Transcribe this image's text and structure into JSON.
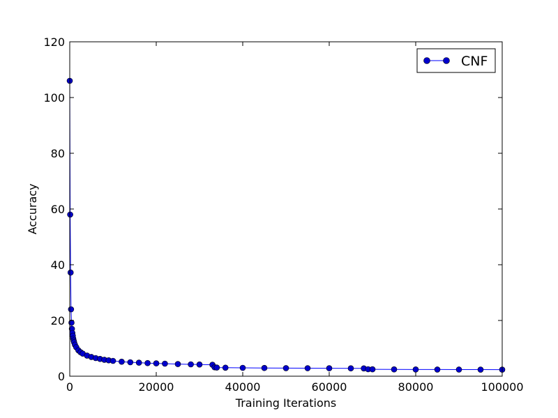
{
  "chart_data": {
    "type": "line",
    "title": "",
    "xlabel": "Training Iterations",
    "ylabel": "Accuracy",
    "xlim": [
      0,
      100000
    ],
    "ylim": [
      0,
      120
    ],
    "xticks": [
      0,
      20000,
      40000,
      60000,
      80000,
      100000
    ],
    "xtick_labels": [
      "0",
      "20000",
      "40000",
      "60000",
      "80000",
      "100000"
    ],
    "yticks": [
      0,
      20,
      40,
      60,
      80,
      100,
      120
    ],
    "ytick_labels": [
      "0",
      "20",
      "40",
      "60",
      "80",
      "100",
      "120"
    ],
    "grid": false,
    "legend": {
      "position": "top-right",
      "entries": [
        "CNF"
      ]
    },
    "series": [
      {
        "name": "CNF",
        "color": "#0000ff",
        "marker": "circle",
        "x": [
          0,
          100,
          200,
          300,
          400,
          500,
          600,
          700,
          800,
          900,
          1000,
          1200,
          1500,
          2000,
          2500,
          3000,
          4000,
          5000,
          6000,
          7000,
          8000,
          9000,
          10000,
          12000,
          14000,
          16000,
          18000,
          20000,
          22000,
          25000,
          28000,
          30000,
          33000,
          33500,
          34000,
          36000,
          40000,
          45000,
          50000,
          55000,
          60000,
          65000,
          68000,
          69000,
          70000,
          75000,
          80000,
          85000,
          90000,
          95000,
          100000
        ],
        "y": [
          106,
          58,
          37.2,
          24,
          19.2,
          17,
          15.5,
          14.5,
          13.5,
          12.8,
          12.2,
          11.3,
          10.4,
          9.3,
          8.6,
          8.1,
          7.4,
          6.9,
          6.5,
          6.2,
          5.9,
          5.7,
          5.5,
          5.2,
          5.0,
          4.85,
          4.7,
          4.6,
          4.5,
          4.35,
          4.25,
          4.2,
          4.1,
          3.2,
          3.1,
          3.05,
          3.0,
          2.95,
          2.9,
          2.87,
          2.85,
          2.82,
          2.8,
          2.5,
          2.48,
          2.45,
          2.42,
          2.4,
          2.38,
          2.36,
          2.35
        ]
      }
    ]
  }
}
